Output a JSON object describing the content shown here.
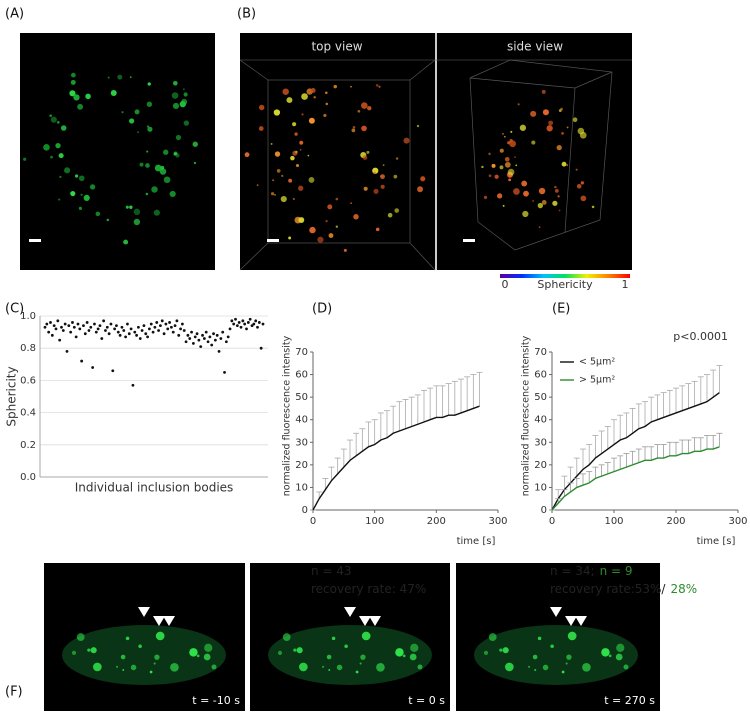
{
  "labels": [
    "(A)",
    "(B)",
    "(C)",
    "(D)",
    "(E)",
    "(F)"
  ],
  "panel_b": {
    "titles": [
      "top view",
      "side view"
    ],
    "colorbar": {
      "label": "Sphericity",
      "ticks": [
        0,
        1
      ]
    }
  },
  "chart_data": [
    {
      "type": "scatter",
      "ylabel": "Sphericity",
      "xlabel": "Individual inclusion bodies",
      "color": "#111111",
      "grid": true,
      "ylim": [
        0,
        1
      ],
      "yticks": [
        {
          "value": 0,
          "label": "0.0"
        },
        0.2,
        0.4,
        0.6,
        0.8,
        {
          "value": 1,
          "label": "1.0"
        }
      ],
      "values": [
        0.93,
        0.95,
        0.9,
        0.96,
        0.88,
        0.94,
        0.92,
        0.97,
        0.85,
        0.93,
        0.91,
        0.95,
        0.78,
        0.94,
        0.9,
        0.96,
        0.93,
        0.87,
        0.95,
        0.92,
        0.72,
        0.94,
        0.89,
        0.96,
        0.91,
        0.93,
        0.68,
        0.95,
        0.9,
        0.92,
        0.94,
        0.86,
        0.97,
        0.91,
        0.93,
        0.89,
        0.95,
        0.66,
        0.92,
        0.94,
        0.9,
        0.88,
        0.93,
        0.91,
        0.87,
        0.95,
        0.89,
        0.92,
        0.57,
        0.9,
        0.88,
        0.93,
        0.86,
        0.91,
        0.94,
        0.89,
        0.87,
        0.92,
        0.95,
        0.9,
        0.93,
        0.96,
        0.91,
        0.94,
        0.97,
        0.89,
        0.95,
        0.92,
        0.96,
        0.93,
        0.9,
        0.94,
        0.97,
        0.88,
        0.92,
        0.95,
        0.91,
        0.84,
        0.88,
        0.86,
        0.9,
        0.83,
        0.87,
        0.89,
        0.85,
        0.81,
        0.88,
        0.86,
        0.9,
        0.84,
        0.87,
        0.82,
        0.89,
        0.85,
        0.88,
        0.78,
        0.86,
        0.9,
        0.65,
        0.84,
        0.87,
        0.92,
        0.97,
        0.95,
        0.98,
        0.94,
        0.96,
        0.93,
        0.97,
        0.95,
        0.92,
        0.96,
        0.98,
        0.94,
        0.95,
        0.97,
        0.93,
        0.96,
        0.8,
        0.95
      ]
    },
    {
      "type": "line",
      "ylabel": "normalized fluorescence intensity",
      "xlabel": "time [s]",
      "xlim": [
        0,
        300
      ],
      "xticks": [
        0,
        100,
        200,
        300
      ],
      "ylim": [
        0,
        70
      ],
      "yticks": [
        0,
        10,
        20,
        30,
        40,
        50,
        60,
        70
      ],
      "x": [
        0,
        10,
        20,
        30,
        40,
        50,
        60,
        70,
        80,
        90,
        100,
        110,
        120,
        130,
        140,
        150,
        160,
        170,
        180,
        190,
        200,
        210,
        220,
        230,
        240,
        250,
        260,
        270
      ],
      "series": [
        {
          "color": "#111111",
          "errorcolor": "#aaaaaa",
          "values": [
            0,
            5,
            9,
            13,
            16,
            19,
            22,
            24,
            26,
            28,
            29,
            31,
            32,
            34,
            35,
            36,
            37,
            38,
            39,
            40,
            41,
            41,
            42,
            42,
            43,
            44,
            45,
            46
          ],
          "errors": [
            0,
            3,
            5,
            6,
            7,
            8,
            9,
            10,
            10,
            11,
            11,
            12,
            12,
            12,
            13,
            13,
            13,
            13,
            14,
            14,
            14,
            14,
            14,
            15,
            15,
            15,
            15,
            15
          ]
        }
      ],
      "annotations": [
        [
          {
            "text": "n = 43",
            "color": "#222222"
          }
        ],
        [
          {
            "text": "recovery rate: 47%",
            "color": "#222222"
          }
        ]
      ]
    },
    {
      "type": "line",
      "ylabel": "normalized fluorescence intensity",
      "xlabel": "time [s]",
      "note": "p<0.0001",
      "xlim": [
        0,
        300
      ],
      "xticks": [
        0,
        100,
        200,
        300
      ],
      "ylim": [
        0,
        70
      ],
      "yticks": [
        0,
        10,
        20,
        30,
        40,
        50,
        60,
        70
      ],
      "x": [
        0,
        10,
        20,
        30,
        40,
        50,
        60,
        70,
        80,
        90,
        100,
        110,
        120,
        130,
        140,
        150,
        160,
        170,
        180,
        190,
        200,
        210,
        220,
        230,
        240,
        250,
        260,
        270
      ],
      "series": [
        {
          "name": "< 5µm²",
          "color": "#111111",
          "errorcolor": "#aaaaaa",
          "values": [
            0,
            5,
            9,
            12,
            15,
            18,
            20,
            23,
            25,
            27,
            29,
            31,
            32,
            34,
            36,
            37,
            39,
            40,
            41,
            42,
            43,
            44,
            45,
            46,
            47,
            48,
            50,
            52
          ],
          "errors": [
            0,
            4,
            6,
            7,
            8,
            9,
            9,
            10,
            10,
            10,
            11,
            11,
            11,
            11,
            11,
            11,
            11,
            11,
            11,
            11,
            11,
            11,
            11,
            11,
            12,
            12,
            12,
            12
          ]
        },
        {
          "name": "> 5µm²",
          "color": "#2e8b2e",
          "errorcolor": "#9a9a9a",
          "values": [
            0,
            3,
            6,
            8,
            10,
            11,
            12,
            14,
            15,
            16,
            17,
            18,
            19,
            20,
            21,
            22,
            22,
            23,
            23,
            24,
            24,
            25,
            25,
            26,
            26,
            27,
            27,
            28
          ],
          "errors": [
            0,
            2,
            3,
            4,
            4,
            5,
            5,
            5,
            5,
            5,
            6,
            6,
            6,
            6,
            6,
            6,
            6,
            6,
            6,
            6,
            6,
            6,
            6,
            6,
            6,
            6,
            6,
            6
          ]
        }
      ],
      "annotations": [
        [
          {
            "text": "n = 34;",
            "color": "#222222"
          },
          {
            "text": "n = 9",
            "color": "#2e8b2e"
          }
        ],
        [
          {
            "text": "recovery rate:53%/",
            "color": "#222222"
          },
          {
            "text": "28%",
            "color": "#2e8b2e"
          }
        ]
      ]
    }
  ],
  "panel_f": {
    "timestamps": [
      "t = -10 s",
      "t = 0 s",
      "t = 270 s"
    ]
  }
}
